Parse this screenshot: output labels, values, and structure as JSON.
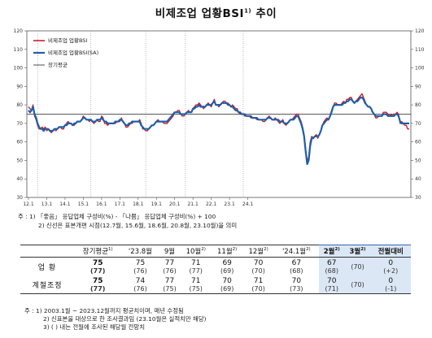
{
  "title": "비제조업 업황BSI",
  "title_sup": "1)",
  "title_suffix": " 추이",
  "chart_data": {
    "type": "line",
    "ylim": [
      30,
      120
    ],
    "yticks": [
      30,
      40,
      50,
      60,
      70,
      80,
      90,
      100,
      110,
      120
    ],
    "xlabels": [
      "12.1",
      "13.1",
      "14.1",
      "15.1",
      "16.1",
      "17.1",
      "18.1",
      "19.1",
      "20.1",
      "21.1",
      "22.1",
      "23.1",
      "24.1"
    ],
    "x_start": "2012.1",
    "long_run_avg": 75,
    "series": [
      {
        "name": "비제조업 업황BSI",
        "color": "#cc1f2a",
        "values": [
          79,
          78,
          77,
          80,
          74,
          72,
          69,
          67,
          67,
          68,
          67,
          68,
          66,
          67,
          66,
          65,
          66,
          67,
          66,
          67,
          68,
          68,
          67,
          67,
          69,
          70,
          71,
          70,
          70,
          69,
          69,
          70,
          71,
          71,
          71,
          72,
          74,
          73,
          72,
          72,
          71,
          72,
          71,
          70,
          71,
          72,
          71,
          71,
          74,
          73,
          70,
          70,
          69,
          70,
          70,
          70,
          70,
          70,
          71,
          71,
          71,
          73,
          71,
          70,
          68,
          68,
          69,
          70,
          70,
          71,
          71,
          71,
          71,
          72,
          70,
          67,
          67,
          66,
          66,
          67,
          68,
          69,
          69,
          70,
          71,
          72,
          71,
          71,
          71,
          70,
          70,
          70,
          71,
          72,
          73,
          74,
          76,
          76,
          77,
          77,
          75,
          74,
          74,
          75,
          76,
          77,
          76,
          76,
          78,
          79,
          80,
          80,
          81,
          80,
          79,
          78,
          79,
          80,
          81,
          80,
          79,
          81,
          83,
          80,
          80,
          79,
          80,
          81,
          82,
          82,
          81,
          81,
          80,
          79,
          80,
          79,
          78,
          78,
          76,
          75,
          75,
          75,
          74,
          74,
          74,
          74,
          73,
          73,
          73,
          73,
          72,
          72,
          72,
          72,
          71,
          71,
          72,
          73,
          74,
          73,
          72,
          72,
          73,
          72,
          71,
          70,
          71,
          72,
          70,
          69,
          70,
          71,
          72,
          72,
          73,
          74,
          75,
          75,
          73,
          71,
          68,
          64,
          56,
          49,
          52,
          60,
          63,
          62,
          63,
          64,
          62,
          64,
          66,
          69,
          71,
          72,
          73,
          72,
          74,
          77,
          79,
          81,
          81,
          80,
          80,
          80,
          81,
          82,
          81,
          83,
          83,
          84,
          84,
          82,
          81,
          82,
          83,
          84,
          85,
          86,
          84,
          82,
          80,
          79,
          79,
          78,
          76,
          75,
          73,
          73,
          74,
          74,
          74,
          76,
          76,
          76,
          75,
          74,
          75,
          74,
          75,
          75,
          76,
          75,
          70,
          71,
          70,
          69,
          69,
          67,
          67
        ],
        "avg_flag": false
      },
      {
        "name": "비제조업 업황BSI(SA)",
        "color": "#1f5fa8",
        "values": [
          77,
          76,
          77,
          79,
          75,
          73,
          70,
          68,
          67,
          67,
          66,
          67,
          67,
          67,
          66,
          66,
          66,
          67,
          67,
          67,
          68,
          68,
          68,
          68,
          69,
          69,
          70,
          70,
          70,
          69,
          70,
          70,
          71,
          71,
          71,
          72,
          73,
          73,
          72,
          72,
          72,
          72,
          71,
          71,
          71,
          72,
          72,
          72,
          73,
          72,
          71,
          71,
          70,
          70,
          70,
          70,
          70,
          71,
          71,
          71,
          72,
          72,
          71,
          70,
          69,
          69,
          70,
          70,
          71,
          71,
          71,
          71,
          71,
          71,
          69,
          68,
          67,
          67,
          67,
          67,
          68,
          69,
          69,
          70,
          71,
          71,
          71,
          71,
          71,
          71,
          71,
          71,
          72,
          73,
          74,
          75,
          76,
          76,
          76,
          76,
          75,
          75,
          75,
          75,
          76,
          76,
          76,
          76,
          78,
          78,
          79,
          79,
          80,
          79,
          79,
          79,
          79,
          80,
          80,
          80,
          80,
          81,
          82,
          80,
          80,
          80,
          80,
          81,
          81,
          81,
          81,
          80,
          80,
          79,
          79,
          78,
          77,
          77,
          76,
          76,
          75,
          75,
          75,
          74,
          74,
          74,
          74,
          73,
          73,
          73,
          73,
          72,
          72,
          72,
          72,
          72,
          72,
          73,
          73,
          73,
          72,
          72,
          72,
          72,
          72,
          71,
          71,
          71,
          70,
          70,
          70,
          71,
          72,
          72,
          72,
          73,
          74,
          74,
          72,
          70,
          67,
          63,
          55,
          48,
          50,
          58,
          62,
          62,
          63,
          63,
          63,
          64,
          66,
          69,
          70,
          71,
          72,
          72,
          74,
          76,
          79,
          80,
          80,
          80,
          80,
          80,
          80,
          81,
          81,
          82,
          82,
          83,
          83,
          82,
          81,
          82,
          82,
          83,
          84,
          84,
          83,
          81,
          80,
          79,
          79,
          78,
          76,
          75,
          74,
          74,
          74,
          74,
          74,
          75,
          75,
          75,
          74,
          74,
          74,
          74,
          74,
          75,
          75,
          74,
          71,
          70,
          70,
          70,
          70,
          70,
          70
        ],
        "avg_flag": false
      },
      {
        "name": "장기평균",
        "color": "#222222",
        "values": [],
        "avg_flag": true
      }
    ]
  },
  "note1_lines": [
    "주 : 1) 「좋음」 응답업체 구성비(%) - 「나쁨」 응답업체 구성비(%) + 100",
    "2) 신선은 표본개편 시점(12.7월, 15.6월, 18.6월, 20.8월, 23.10월)을 의미"
  ],
  "table": {
    "headers": [
      {
        "text": "장기평균",
        "sup": "1)"
      },
      {
        "text": "'23.8월",
        "sup": ""
      },
      {
        "text": "9월",
        "sup": ""
      },
      {
        "text": "10월",
        "sup": "2)"
      },
      {
        "text": "11월",
        "sup": "2)"
      },
      {
        "text": "12월",
        "sup": "2)"
      },
      {
        "text": "'24.1월",
        "sup": "2)"
      },
      {
        "text": "2월",
        "sup": "2)"
      },
      {
        "text": "3월",
        "sup": "2)"
      },
      {
        "text": "전월대비",
        "sup": ""
      }
    ],
    "rows": [
      {
        "label": "업      황",
        "cells": [
          {
            "v": "75",
            "s": "(77)"
          },
          {
            "v": "75",
            "s": "(76)"
          },
          {
            "v": "77",
            "s": "(76)"
          },
          {
            "v": "71",
            "s": "(77)"
          },
          {
            "v": "69",
            "s": "(69)"
          },
          {
            "v": "70",
            "s": "(70)"
          },
          {
            "v": "67",
            "s": "(68)"
          },
          {
            "v": "67",
            "s": "(68)"
          },
          {
            "v": "",
            "s": "(70)"
          },
          {
            "v": "0",
            "s": "(+2)"
          }
        ]
      },
      {
        "label": "계절조정",
        "cells": [
          {
            "v": "75",
            "s": "(77)"
          },
          {
            "v": "74",
            "s": "(76)"
          },
          {
            "v": "77",
            "s": "(75)"
          },
          {
            "v": "71",
            "s": "(75)"
          },
          {
            "v": "70",
            "s": "(69)"
          },
          {
            "v": "71",
            "s": "(70)"
          },
          {
            "v": "70",
            "s": "(73)"
          },
          {
            "v": "70",
            "s": "(71)"
          },
          {
            "v": "",
            "s": "(70)"
          },
          {
            "v": "0",
            "s": "(-1)"
          }
        ]
      }
    ]
  },
  "note2_lines": [
    "주 : 1) 2003.1월 ~ 2023.12월까지 평균치이며, 매년 수정됨",
    "2) 신표본을 대상으로 한 조사결과임 (23.10월은 실적치만 해당)",
    "3) (  ) 내는 전월에 조사된 해당월 전망치"
  ]
}
